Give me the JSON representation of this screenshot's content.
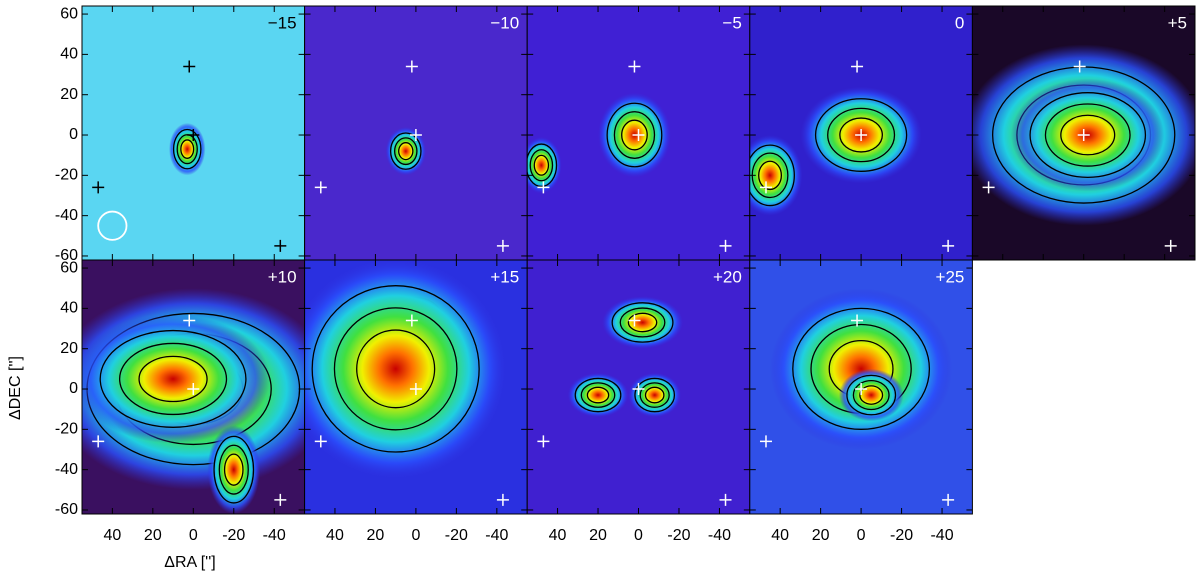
{
  "chart_data": {
    "type": "channel_maps",
    "xlabel": "ΔRA ['']",
    "ylabel": "ΔDEC ['']",
    "xlim": [
      55,
      -55
    ],
    "ylim": [
      -62,
      64
    ],
    "xticks": [
      40,
      20,
      0,
      -20,
      -40
    ],
    "yticks": [
      60,
      40,
      20,
      0,
      -20,
      -40,
      -60
    ],
    "markers": {
      "x": [
        2,
        0,
        47,
        -43
      ],
      "y": [
        34,
        0,
        -26,
        -55
      ]
    },
    "beam": {
      "x": 40,
      "y": -45,
      "r": 7
    },
    "panels": [
      {
        "label": "−15",
        "color": "#000000"
      },
      {
        "label": "−10",
        "color": "#ffffff"
      },
      {
        "label": "−5",
        "color": "#ffffff"
      },
      {
        "label": "0",
        "color": "#ffffff"
      },
      {
        "label": "+5",
        "color": "#ffffff"
      },
      {
        "label": "+10",
        "color": "#ffffff"
      },
      {
        "label": "+15",
        "color": "#ffffff"
      },
      {
        "label": "+20",
        "color": "#ffffff"
      },
      {
        "label": "+25",
        "color": "#ffffff"
      }
    ]
  }
}
